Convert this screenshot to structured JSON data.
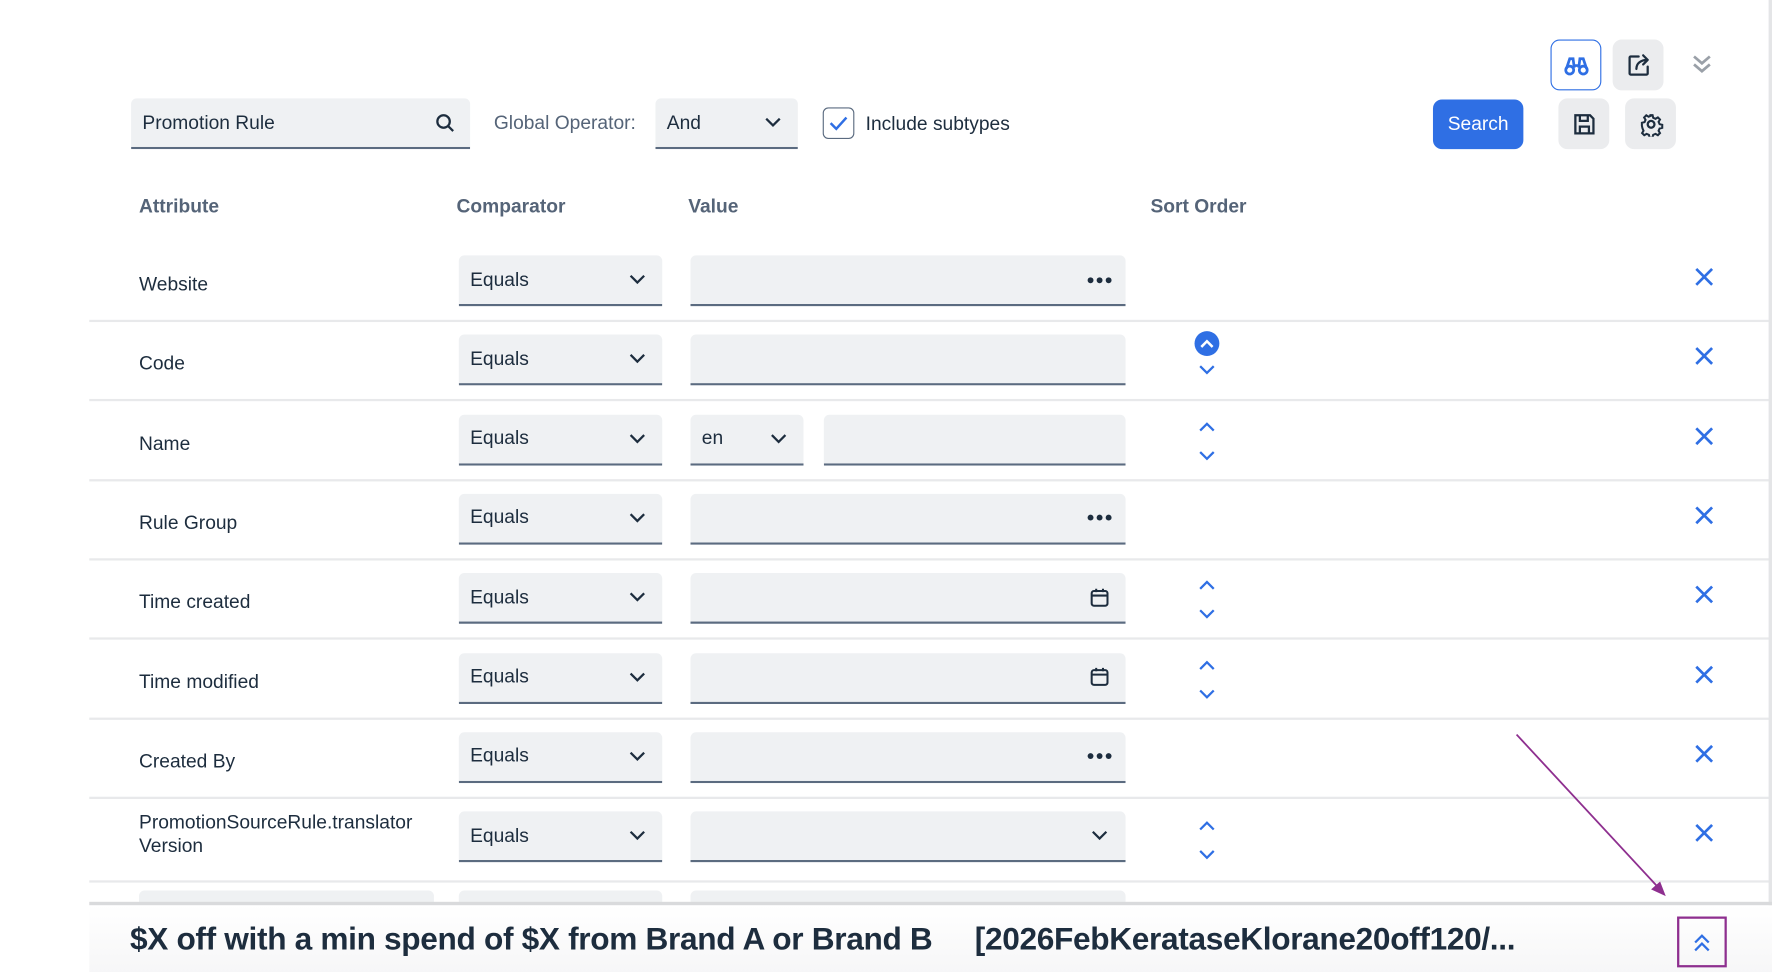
{
  "toolbar": {
    "type_search_value": "Promotion Rule",
    "global_operator_label": "Global Operator:",
    "global_operator_value": "And",
    "include_subtypes_label": "Include subtypes",
    "include_subtypes_checked": true,
    "search_label": "Search",
    "accent": "#2f6fe4"
  },
  "headers": {
    "attribute": "Attribute",
    "comparator": "Comparator",
    "value": "Value",
    "sort_order": "Sort Order"
  },
  "rows": [
    {
      "attribute": "Website",
      "comparator": "Equals",
      "value_kind": "lookup",
      "sort": "none"
    },
    {
      "attribute": "Code",
      "comparator": "Equals",
      "value_kind": "text",
      "sort": "asc-active"
    },
    {
      "attribute": "Name",
      "comparator": "Equals",
      "value_kind": "localized",
      "language": "en",
      "sort": "both"
    },
    {
      "attribute": "Rule Group",
      "comparator": "Equals",
      "value_kind": "lookup",
      "sort": "none"
    },
    {
      "attribute": "Time created",
      "comparator": "Equals",
      "value_kind": "date",
      "sort": "both"
    },
    {
      "attribute": "Time modified",
      "comparator": "Equals",
      "value_kind": "date",
      "sort": "both"
    },
    {
      "attribute": "Created By",
      "comparator": "Equals",
      "value_kind": "lookup",
      "sort": "none"
    },
    {
      "attribute": "PromotionSourceRule.translator Version",
      "comparator": "Equals",
      "value_kind": "select",
      "sort": "both"
    }
  ],
  "bottom_bar": {
    "title": "$X off with a min spend of $X from Brand A or Brand B",
    "code": "[2026FebKerataseKlorane20off120/..."
  },
  "annotation_color": "#8e2f8f"
}
